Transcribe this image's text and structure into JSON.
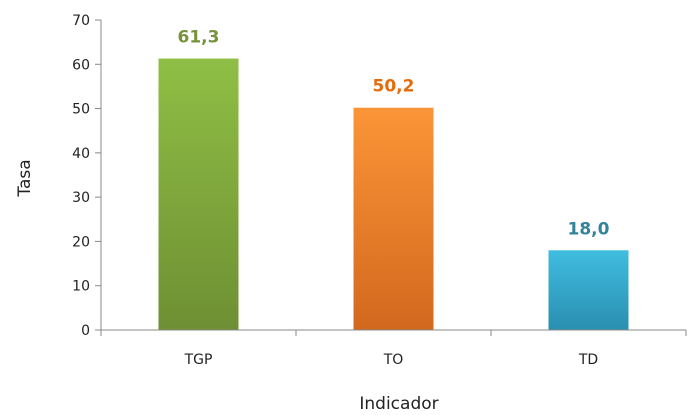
{
  "chart_data": {
    "type": "bar",
    "title": "",
    "xlabel": "Indicador",
    "ylabel": "Tasa",
    "categories": [
      "TGP",
      "TO",
      "TD"
    ],
    "values": [
      61.3,
      50.2,
      18.0
    ],
    "value_labels": [
      "61,3",
      "50,2",
      "18,0"
    ],
    "ylim": [
      0,
      70
    ],
    "yticks": [
      0,
      10,
      20,
      30,
      40,
      50,
      60,
      70
    ],
    "grid": false,
    "legend": "none",
    "bar_colors": [
      {
        "top": "#8fbf45",
        "bottom": "#6e8f33",
        "label": "#76933c"
      },
      {
        "top": "#fb9537",
        "bottom": "#d2681e",
        "label": "#e46c0a"
      },
      {
        "top": "#3fbde0",
        "bottom": "#2a8fb0",
        "label": "#31849b"
      }
    ]
  }
}
